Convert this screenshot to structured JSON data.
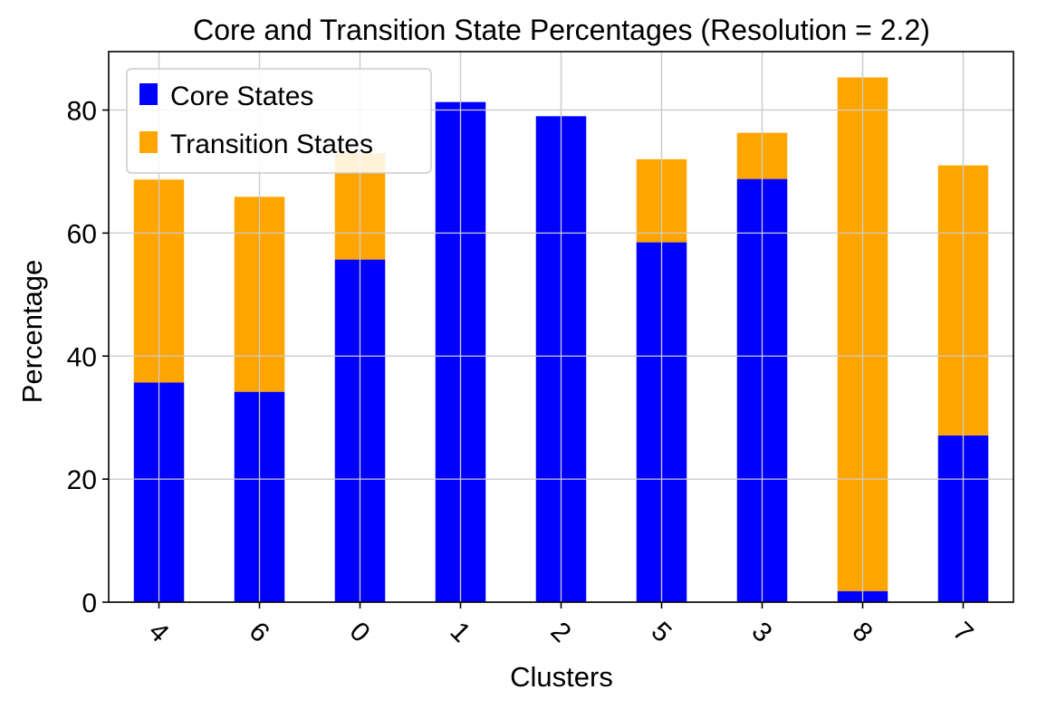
{
  "chart_data": {
    "type": "bar",
    "stacked": true,
    "title": "Core and Transition State Percentages (Resolution = 2.2)",
    "xlabel": "Clusters",
    "ylabel": "Percentage",
    "categories": [
      "4",
      "6",
      "0",
      "1",
      "2",
      "5",
      "3",
      "8",
      "7"
    ],
    "series": [
      {
        "name": "Core States",
        "color": "#0000ff",
        "values": [
          35.7,
          34.2,
          55.7,
          81.3,
          79.0,
          58.5,
          68.8,
          1.8,
          27.1
        ]
      },
      {
        "name": "Transition States",
        "color": "#ffa500",
        "values": [
          33.0,
          31.7,
          17.3,
          0.0,
          0.0,
          13.5,
          7.5,
          83.5,
          43.9
        ]
      }
    ],
    "ylim": [
      0,
      89.5
    ],
    "yticks": [
      0,
      20,
      40,
      60,
      80
    ],
    "grid": true,
    "legend_position": "top-left",
    "xtick_rotation": 45
  }
}
